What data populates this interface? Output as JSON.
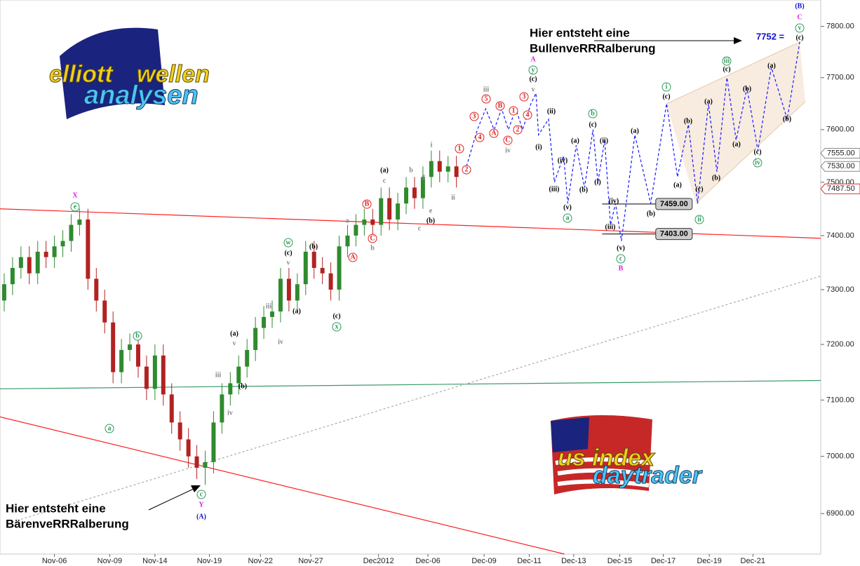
{
  "chart_data": {
    "type": "candlestick",
    "log_scale": true,
    "ylim": [
      6830,
      7852
    ],
    "yticks": [
      {
        "value": 6900,
        "label": "6900.00"
      },
      {
        "value": 7000,
        "label": "7000.00"
      },
      {
        "value": 7100,
        "label": "7100.00"
      },
      {
        "value": 7200,
        "label": "7200.00"
      },
      {
        "value": 7300,
        "label": "7300.00"
      },
      {
        "value": 7400,
        "label": "7400.00"
      },
      {
        "value": 7500,
        "label": "7500.00"
      },
      {
        "value": 7600,
        "label": "7600.00"
      },
      {
        "value": 7700,
        "label": "7700.00"
      },
      {
        "value": 7800,
        "label": "7800.00"
      }
    ],
    "xlim": [
      -0.5,
      97.5
    ],
    "xticks": [
      {
        "value": 6.0,
        "label": "Nov-06"
      },
      {
        "value": 12.6,
        "label": "Nov-09"
      },
      {
        "value": 18.0,
        "label": "Nov-14"
      },
      {
        "value": 24.5,
        "label": "Nov-19"
      },
      {
        "value": 30.6,
        "label": "Nov-22"
      },
      {
        "value": 36.6,
        "label": "Nov-27"
      },
      {
        "value": 44.7,
        "label": "Dec2012"
      },
      {
        "value": 50.6,
        "label": "Dec-06"
      },
      {
        "value": 57.3,
        "label": "Dec-09"
      },
      {
        "value": 62.7,
        "label": "Dec-11"
      },
      {
        "value": 68.0,
        "label": "Dec-13"
      },
      {
        "value": 73.5,
        "label": "Dec-15"
      },
      {
        "value": 78.7,
        "label": "Dec-17"
      },
      {
        "value": 84.2,
        "label": "Dec-19"
      },
      {
        "value": 89.4,
        "label": "Dec-21"
      }
    ],
    "up_color": "#2e8b2e",
    "down_color": "#b22222",
    "open": [
      7280,
      7310,
      7340,
      7360,
      7330,
      7370,
      7360,
      7380,
      7390,
      7420,
      7430,
      7320,
      7280,
      7240,
      7150,
      7190,
      7200,
      7160,
      7120,
      7180,
      7110,
      7060,
      7030,
      7000,
      6980,
      6990,
      7060,
      7110,
      7130,
      7160,
      7190,
      7230,
      7250,
      7260,
      7320,
      7280,
      7310,
      7370,
      7340,
      7330,
      7300,
      7380,
      7400,
      7420,
      7430,
      7420,
      7470,
      7430,
      7460,
      7490,
      7470,
      7510,
      7540,
      7520,
      7530
    ],
    "high": [
      7330,
      7360,
      7380,
      7380,
      7390,
      7390,
      7400,
      7410,
      7440,
      7450,
      7450,
      7340,
      7300,
      7260,
      7210,
      7220,
      7220,
      7180,
      7200,
      7200,
      7130,
      7080,
      7050,
      7020,
      7010,
      7080,
      7130,
      7150,
      7180,
      7210,
      7250,
      7270,
      7280,
      7340,
      7340,
      7330,
      7390,
      7390,
      7360,
      7350,
      7400,
      7420,
      7440,
      7450,
      7450,
      7490,
      7490,
      7480,
      7510,
      7510,
      7530,
      7560,
      7560,
      7550,
      7550
    ],
    "low": [
      7260,
      7290,
      7320,
      7310,
      7310,
      7340,
      7340,
      7360,
      7370,
      7400,
      7300,
      7260,
      7220,
      7130,
      7130,
      7170,
      7140,
      7100,
      7100,
      7090,
      7040,
      7010,
      6980,
      6960,
      6950,
      6970,
      7040,
      7090,
      7110,
      7140,
      7170,
      7210,
      7230,
      7240,
      7260,
      7260,
      7290,
      7320,
      7310,
      7280,
      7280,
      7360,
      7380,
      7400,
      7400,
      7400,
      7410,
      7410,
      7440,
      7450,
      7450,
      7490,
      7500,
      7500,
      7490
    ],
    "close": [
      7310,
      7340,
      7360,
      7330,
      7370,
      7360,
      7380,
      7390,
      7420,
      7430,
      7320,
      7280,
      7240,
      7150,
      7190,
      7200,
      7160,
      7120,
      7180,
      7110,
      7060,
      7030,
      7000,
      6980,
      6990,
      7060,
      7110,
      7130,
      7160,
      7190,
      7230,
      7250,
      7260,
      7320,
      7280,
      7310,
      7370,
      7340,
      7330,
      7300,
      7380,
      7400,
      7420,
      7430,
      7420,
      7470,
      7430,
      7460,
      7490,
      7470,
      7510,
      7540,
      7520,
      7530,
      7510
    ],
    "projection": {
      "color": "#1a1aff",
      "x": [
        55.2,
        56.5,
        57.5,
        58.5,
        59.4,
        60.2,
        61.1,
        61.9,
        62.9,
        63.5,
        63.8,
        65.0,
        65.7,
        66.8,
        67.3,
        68.3,
        69.3,
        70.3,
        70.9,
        71.7,
        72.4,
        73.0,
        73.7,
        75.3,
        77.2,
        79.1,
        80.4,
        81.7,
        82.8,
        84.1,
        85.1,
        86.3,
        87.4,
        88.7,
        90.0,
        91.6,
        93.5,
        95.0
      ],
      "y": [
        7530,
        7600,
        7640,
        7600,
        7640,
        7600,
        7640,
        7600,
        7650,
        7670,
        7590,
        7620,
        7500,
        7550,
        7460,
        7570,
        7490,
        7600,
        7500,
        7580,
        7420,
        7460,
        7390,
        7590,
        7460,
        7650,
        7510,
        7610,
        7460,
        7650,
        7520,
        7700,
        7580,
        7680,
        7560,
        7720,
        7620,
        7770
      ]
    },
    "trendlines": [
      {
        "color": "#ff2020",
        "x": [
          -0.5,
          97.5
        ],
        "y": [
          7450,
          7395
        ]
      },
      {
        "color": "#ff2020",
        "x": [
          -0.5,
          66.9
        ],
        "y": [
          7070,
          6830
        ]
      },
      {
        "color": "#3a9a6a",
        "x": [
          -0.5,
          97.5
        ],
        "y": [
          7120,
          7135
        ]
      },
      {
        "color": "#aaaaaa",
        "x": [
          2.0,
          97.5
        ],
        "y": [
          6890,
          7325
        ]
      }
    ],
    "levels": [
      {
        "value": 7459,
        "label": "7459.00",
        "x": [
          71.4,
          77.8
        ]
      },
      {
        "value": 7403,
        "label": "7403.00",
        "x": [
          71.4,
          77.8
        ]
      }
    ],
    "price_tags": [
      {
        "value": 7555,
        "label": "7555.00",
        "color": "#888888"
      },
      {
        "value": 7530,
        "label": "7530.00",
        "color": "#888888"
      },
      {
        "value": 7487.5,
        "label": "7487.50",
        "color": "#d03030"
      }
    ],
    "target_label": "7752 =",
    "annotations": [
      "Hier entsteht eine",
      "BullenveRRRalberung",
      "Hier entsteht eine",
      "BärenveRRRalberung"
    ],
    "logos": [
      "elliott",
      "wellen",
      "analysen",
      "us index",
      "daytrader"
    ],
    "wave_labels": [
      {
        "text": "X",
        "color": "#e020e0",
        "circled": false
      },
      {
        "text": "e",
        "color": "#2e9a5a",
        "circled": true
      },
      {
        "text": "b",
        "color": "#2e9a5a",
        "circled": true
      },
      {
        "text": "a",
        "color": "#2e9a5a",
        "circled": true
      },
      {
        "text": "c",
        "color": "#2e9a5a",
        "circled": true
      },
      {
        "text": "Y",
        "color": "#e020e0",
        "circled": false
      },
      {
        "text": "(A)",
        "color": "#1010d0",
        "circled": false
      },
      {
        "text": "w",
        "color": "#2e9a5a",
        "circled": true
      },
      {
        "text": "(c)",
        "color": "#000000",
        "circled": false
      },
      {
        "text": "v",
        "color": "#888888",
        "circled": false
      },
      {
        "text": "x",
        "color": "#2e9a5a",
        "circled": true
      },
      {
        "text": "(c)",
        "color": "#000000",
        "circled": false
      },
      {
        "text": "(b)",
        "color": "#000000",
        "circled": false
      },
      {
        "text": "(a)",
        "color": "#000000",
        "circled": false
      },
      {
        "text": "iii",
        "color": "#888888",
        "circled": false
      },
      {
        "text": "iv",
        "color": "#888888",
        "circled": false
      },
      {
        "text": "(a)",
        "color": "#000000",
        "circled": false
      },
      {
        "text": "v",
        "color": "#888888",
        "circled": false
      },
      {
        "text": "iii",
        "color": "#888888",
        "circled": false
      },
      {
        "text": "iv",
        "color": "#888888",
        "circled": false
      },
      {
        "text": "(b)",
        "color": "#000000",
        "circled": false
      },
      {
        "text": "a",
        "color": "#888888",
        "circled": false
      },
      {
        "text": "b",
        "color": "#888888",
        "circled": false
      },
      {
        "text": "c",
        "color": "#888888",
        "circled": false
      },
      {
        "text": "(a)",
        "color": "#000000",
        "circled": false
      },
      {
        "text": "A",
        "color": "#e02020",
        "circled": true
      },
      {
        "text": "C",
        "color": "#e02020",
        "circled": true
      },
      {
        "text": "B",
        "color": "#e02020",
        "circled": true
      },
      {
        "text": "c",
        "color": "#888888",
        "circled": false
      },
      {
        "text": "(b)",
        "color": "#000000",
        "circled": false
      },
      {
        "text": "e",
        "color": "#888888",
        "circled": false
      },
      {
        "text": "d",
        "color": "#888888",
        "circled": false
      },
      {
        "text": "b",
        "color": "#888888",
        "circled": false
      },
      {
        "text": "i",
        "color": "#888888",
        "circled": false
      },
      {
        "text": "ii",
        "color": "#888888",
        "circled": false
      },
      {
        "text": "1",
        "color": "#e02020",
        "circled": true
      },
      {
        "text": "2",
        "color": "#e02020",
        "circled": true
      },
      {
        "text": "3",
        "color": "#e02020",
        "circled": true
      },
      {
        "text": "4",
        "color": "#e02020",
        "circled": true
      },
      {
        "text": "5",
        "color": "#e02020",
        "circled": true
      },
      {
        "text": "iii",
        "color": "#888888",
        "circled": false
      },
      {
        "text": "A",
        "color": "#e02020",
        "circled": true
      },
      {
        "text": "B",
        "color": "#e02020",
        "circled": true
      },
      {
        "text": "C",
        "color": "#e02020",
        "circled": true
      },
      {
        "text": "iv",
        "color": "#888888",
        "circled": false
      },
      {
        "text": "1",
        "color": "#e02020",
        "circled": true
      },
      {
        "text": "2",
        "color": "#e02020",
        "circled": true
      },
      {
        "text": "3",
        "color": "#e02020",
        "circled": true
      },
      {
        "text": "4",
        "color": "#e02020",
        "circled": true
      },
      {
        "text": "v",
        "color": "#888888",
        "circled": false
      },
      {
        "text": "(c)",
        "color": "#000000",
        "circled": false
      },
      {
        "text": "y",
        "color": "#2e9a5a",
        "circled": true
      },
      {
        "text": "A",
        "color": "#e020e0",
        "circled": false
      },
      {
        "text": "(i)",
        "color": "#000000",
        "circled": false
      },
      {
        "text": "(ii)",
        "color": "#000000",
        "circled": false
      },
      {
        "text": "(iii)",
        "color": "#000000",
        "circled": false
      },
      {
        "text": "(iv)",
        "color": "#000000",
        "circled": false
      },
      {
        "text": "(v)",
        "color": "#000000",
        "circled": false
      },
      {
        "text": "a",
        "color": "#2e9a5a",
        "circled": true
      },
      {
        "text": "(a)",
        "color": "#000000",
        "circled": false
      },
      {
        "text": "(b)",
        "color": "#000000",
        "circled": false
      },
      {
        "text": "b",
        "color": "#2e9a5a",
        "circled": true
      },
      {
        "text": "(c)",
        "color": "#000000",
        "circled": false
      },
      {
        "text": "(i)",
        "color": "#000000",
        "circled": false
      },
      {
        "text": "(ii)",
        "color": "#000000",
        "circled": false
      },
      {
        "text": "(iii)",
        "color": "#000000",
        "circled": false
      },
      {
        "text": "(iv)",
        "color": "#000000",
        "circled": false
      },
      {
        "text": "(v)",
        "color": "#000000",
        "circled": false
      },
      {
        "text": "c",
        "color": "#2e9a5a",
        "circled": true
      },
      {
        "text": "B",
        "color": "#e020e0",
        "circled": false
      },
      {
        "text": "(a)",
        "color": "#000000",
        "circled": false
      },
      {
        "text": "(b)",
        "color": "#000000",
        "circled": false
      },
      {
        "text": "i",
        "color": "#2e9a5a",
        "circled": true
      },
      {
        "text": "(c)",
        "color": "#000000",
        "circled": false
      },
      {
        "text": "(a)",
        "color": "#000000",
        "circled": false
      },
      {
        "text": "(b)",
        "color": "#000000",
        "circled": false
      },
      {
        "text": "(c)",
        "color": "#000000",
        "circled": false
      },
      {
        "text": "ii",
        "color": "#2e9a5a",
        "circled": true
      },
      {
        "text": "(a)",
        "color": "#000000",
        "circled": false
      },
      {
        "text": "(b)",
        "color": "#000000",
        "circled": false
      },
      {
        "text": "iii",
        "color": "#2e9a5a",
        "circled": true
      },
      {
        "text": "(c)",
        "color": "#000000",
        "circled": false
      },
      {
        "text": "(a)",
        "color": "#000000",
        "circled": false
      },
      {
        "text": "(b)",
        "color": "#000000",
        "circled": false
      },
      {
        "text": "(c)",
        "color": "#000000",
        "circled": false
      },
      {
        "text": "iv",
        "color": "#2e9a5a",
        "circled": true
      },
      {
        "text": "(a)",
        "color": "#000000",
        "circled": false
      },
      {
        "text": "(b)",
        "color": "#000000",
        "circled": false
      },
      {
        "text": "(c)",
        "color": "#000000",
        "circled": false
      },
      {
        "text": "v",
        "color": "#2e9a5a",
        "circled": true
      },
      {
        "text": "C",
        "color": "#e020e0",
        "circled": false
      },
      {
        "text": "(B)",
        "color": "#1010d0",
        "circled": false
      }
    ]
  }
}
